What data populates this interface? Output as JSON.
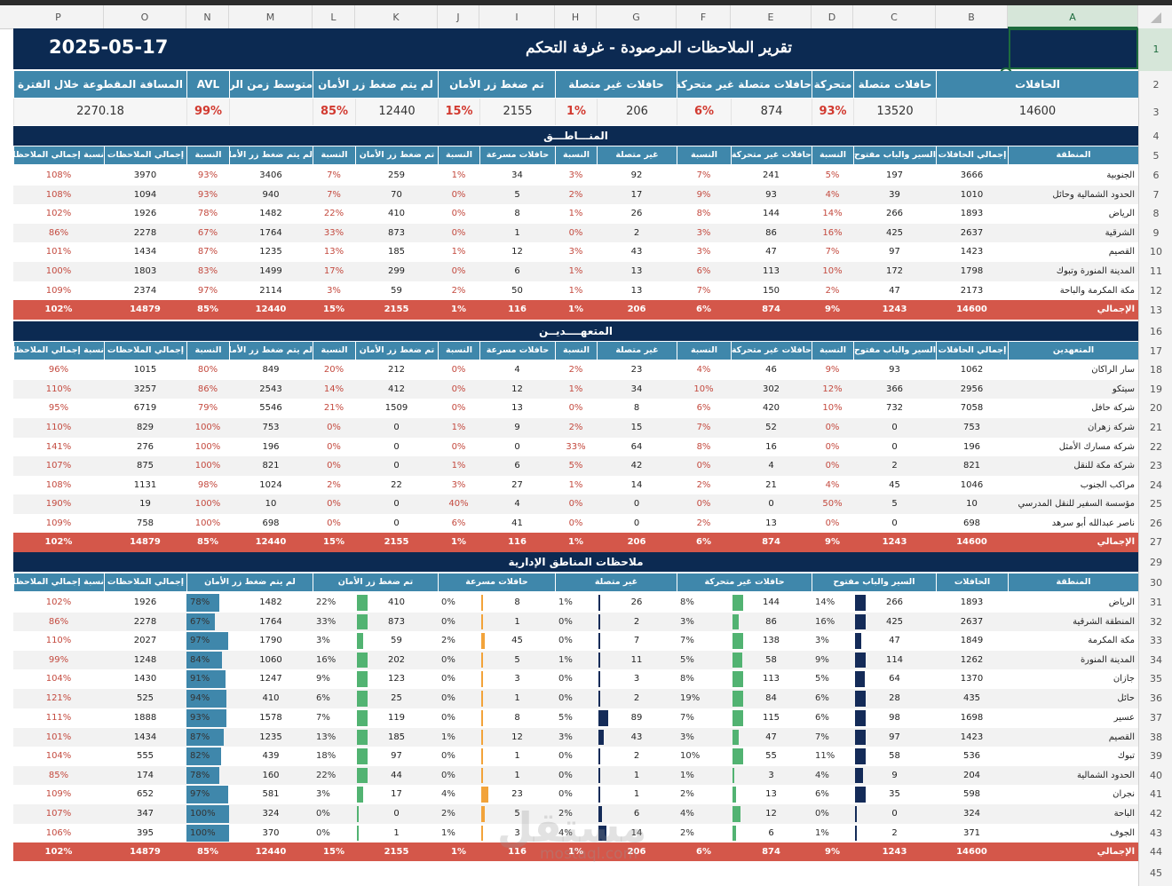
{
  "columns": [
    "P",
    "O",
    "N",
    "M",
    "L",
    "K",
    "J",
    "I",
    "H",
    "G",
    "F",
    "E",
    "D",
    "C",
    "B",
    "A"
  ],
  "rows": [
    1,
    2,
    3,
    4,
    5,
    6,
    7,
    8,
    9,
    10,
    11,
    12,
    13,
    16,
    17,
    18,
    19,
    20,
    21,
    22,
    23,
    24,
    25,
    26,
    27,
    29,
    30,
    31,
    32,
    33,
    34,
    35,
    36,
    37,
    38,
    39,
    40,
    41,
    42,
    43,
    44,
    45
  ],
  "selected_cell": "A1",
  "title": "تقرير الملاحظات المرصودة - غرفة التحكم",
  "date": "2025-05-17",
  "kpi": {
    "headers": [
      "الحافلات",
      "حافلات متصلة",
      "متحركة",
      "حافلات متصلة غير متحركة",
      "حافلات غير متصلة",
      "تم ضغط زر الأمان",
      "لم يتم ضغط زر الأمان",
      "متوسط زمن الرحلة",
      "AVL",
      "المسافة المقطوعة خلال الفترة"
    ],
    "values": [
      "14600",
      "13520",
      "93%",
      "874",
      "6%",
      "206",
      "1%",
      "2155",
      "15%",
      "12440",
      "85%",
      "",
      "99%",
      "2270.18"
    ]
  },
  "sections": {
    "regions": "المنـــاطـــق",
    "contractors": "المتعهــــديــن",
    "admin": "ملاحظات المناطق الإدارية"
  },
  "headers_main": {
    "regions_first": "المنطقة",
    "contractors_first": "المتعهدين",
    "cols": [
      "إجمالي الحافلات",
      "السير والباب مفتوح",
      "النسبة",
      "حافلات غير متحركة",
      "النسبة",
      "غير متصلة",
      "النسبة",
      "حافلات مسرعة",
      "النسبة",
      "تم ضغط زر الأمان",
      "النسبة",
      "لم يتم ضغط زر الأمان",
      "النسبة",
      "إجمالي الملاحظات",
      "نسبة إجمالي الملاحظات"
    ]
  },
  "headers_admin": [
    "المنطقة",
    "الحافلات",
    "السير والباب مفتوح",
    "حافلات غير متحركة",
    "غير متصلة",
    "حافلات مسرعة",
    "تم ضغط زر الأمان",
    "لم يتم ضغط زر الأمان",
    "إجمالي الملاحظات",
    "نسبة إجمالي الملاحظات"
  ],
  "regions": [
    [
      "الجنوبية",
      "3666",
      "197",
      "5%",
      "241",
      "7%",
      "92",
      "3%",
      "34",
      "1%",
      "259",
      "7%",
      "3406",
      "93%",
      "3970",
      "108%"
    ],
    [
      "الحدود الشمالية وحائل",
      "1010",
      "39",
      "4%",
      "93",
      "9%",
      "17",
      "2%",
      "5",
      "0%",
      "70",
      "7%",
      "940",
      "93%",
      "1094",
      "108%"
    ],
    [
      "الرياض",
      "1893",
      "266",
      "14%",
      "144",
      "8%",
      "26",
      "1%",
      "8",
      "0%",
      "410",
      "22%",
      "1482",
      "78%",
      "1926",
      "102%"
    ],
    [
      "الشرقية",
      "2637",
      "425",
      "16%",
      "86",
      "3%",
      "2",
      "0%",
      "1",
      "0%",
      "873",
      "33%",
      "1764",
      "67%",
      "2278",
      "86%"
    ],
    [
      "القصيم",
      "1423",
      "97",
      "7%",
      "47",
      "3%",
      "43",
      "3%",
      "12",
      "1%",
      "185",
      "13%",
      "1235",
      "87%",
      "1434",
      "101%"
    ],
    [
      "المدينة المنورة وتبوك",
      "1798",
      "172",
      "10%",
      "113",
      "6%",
      "13",
      "1%",
      "6",
      "0%",
      "299",
      "17%",
      "1499",
      "83%",
      "1803",
      "100%"
    ],
    [
      "مكة المكرمة والباحة",
      "2173",
      "47",
      "2%",
      "150",
      "7%",
      "13",
      "1%",
      "50",
      "2%",
      "59",
      "3%",
      "2114",
      "97%",
      "2374",
      "109%"
    ]
  ],
  "regions_total": [
    "الإجمالي",
    "14600",
    "1243",
    "9%",
    "874",
    "6%",
    "206",
    "1%",
    "116",
    "1%",
    "2155",
    "15%",
    "12440",
    "85%",
    "14879",
    "102%"
  ],
  "contractors": [
    [
      "سار الراكان",
      "1062",
      "93",
      "9%",
      "46",
      "4%",
      "23",
      "2%",
      "4",
      "0%",
      "212",
      "20%",
      "849",
      "80%",
      "1015",
      "96%"
    ],
    [
      "سيتكو",
      "2956",
      "366",
      "12%",
      "302",
      "10%",
      "34",
      "1%",
      "12",
      "0%",
      "412",
      "14%",
      "2543",
      "86%",
      "3257",
      "110%"
    ],
    [
      "شركة حافل",
      "7058",
      "732",
      "10%",
      "420",
      "6%",
      "8",
      "0%",
      "13",
      "0%",
      "1509",
      "21%",
      "5546",
      "79%",
      "6719",
      "95%"
    ],
    [
      "شركة زهران",
      "753",
      "0",
      "0%",
      "52",
      "7%",
      "15",
      "2%",
      "9",
      "1%",
      "0",
      "0%",
      "753",
      "100%",
      "829",
      "110%"
    ],
    [
      "شركة مسارك الأمثل",
      "196",
      "0",
      "0%",
      "16",
      "8%",
      "64",
      "33%",
      "0",
      "0%",
      "0",
      "0%",
      "196",
      "100%",
      "276",
      "141%"
    ],
    [
      "شركة مكة للنقل",
      "821",
      "2",
      "0%",
      "4",
      "0%",
      "42",
      "5%",
      "6",
      "1%",
      "0",
      "0%",
      "821",
      "100%",
      "875",
      "107%"
    ],
    [
      "مراكب الجنوب",
      "1046",
      "45",
      "4%",
      "21",
      "2%",
      "14",
      "1%",
      "27",
      "3%",
      "22",
      "2%",
      "1024",
      "98%",
      "1131",
      "108%"
    ],
    [
      "مؤسسة السفير للنقل المدرسي",
      "10",
      "5",
      "50%",
      "0",
      "0%",
      "0",
      "0%",
      "4",
      "40%",
      "0",
      "0%",
      "10",
      "100%",
      "19",
      "190%"
    ],
    [
      "ناصر عبدالله أبو سرهد",
      "698",
      "0",
      "0%",
      "13",
      "2%",
      "0",
      "0%",
      "41",
      "6%",
      "0",
      "0%",
      "698",
      "100%",
      "758",
      "109%"
    ]
  ],
  "contractors_total": [
    "الإجمالي",
    "14600",
    "1243",
    "9%",
    "874",
    "6%",
    "206",
    "1%",
    "116",
    "1%",
    "2155",
    "15%",
    "12440",
    "85%",
    "14879",
    "102%"
  ],
  "admin": [
    [
      "الرياض",
      "1893",
      "266",
      "14%",
      "144",
      "8%",
      "26",
      "1%",
      "8",
      "0%",
      "410",
      "22%",
      "1482",
      "78%",
      "1926",
      "102%"
    ],
    [
      "المنطقة الشرقية",
      "2637",
      "425",
      "16%",
      "86",
      "3%",
      "2",
      "0%",
      "1",
      "0%",
      "873",
      "33%",
      "1764",
      "67%",
      "2278",
      "86%"
    ],
    [
      "مكة المكرمة",
      "1849",
      "47",
      "3%",
      "138",
      "7%",
      "7",
      "0%",
      "45",
      "2%",
      "59",
      "3%",
      "1790",
      "97%",
      "2027",
      "110%"
    ],
    [
      "المدينة المنورة",
      "1262",
      "114",
      "9%",
      "58",
      "5%",
      "11",
      "1%",
      "5",
      "0%",
      "202",
      "16%",
      "1060",
      "84%",
      "1248",
      "99%"
    ],
    [
      "جازان",
      "1370",
      "64",
      "5%",
      "113",
      "8%",
      "3",
      "0%",
      "3",
      "0%",
      "123",
      "9%",
      "1247",
      "91%",
      "1430",
      "104%"
    ],
    [
      "حائل",
      "435",
      "28",
      "6%",
      "84",
      "19%",
      "2",
      "0%",
      "1",
      "0%",
      "25",
      "6%",
      "410",
      "94%",
      "525",
      "121%"
    ],
    [
      "عسير",
      "1698",
      "98",
      "6%",
      "115",
      "7%",
      "89",
      "5%",
      "8",
      "0%",
      "119",
      "7%",
      "1578",
      "93%",
      "1888",
      "111%"
    ],
    [
      "القصيم",
      "1423",
      "97",
      "7%",
      "47",
      "3%",
      "43",
      "3%",
      "12",
      "1%",
      "185",
      "13%",
      "1235",
      "87%",
      "1434",
      "101%"
    ],
    [
      "تبوك",
      "536",
      "58",
      "11%",
      "55",
      "10%",
      "2",
      "0%",
      "1",
      "0%",
      "97",
      "18%",
      "439",
      "82%",
      "555",
      "104%"
    ],
    [
      "الحدود الشمالية",
      "204",
      "9",
      "4%",
      "3",
      "1%",
      "1",
      "0%",
      "1",
      "0%",
      "44",
      "22%",
      "160",
      "78%",
      "174",
      "85%"
    ],
    [
      "نجران",
      "598",
      "35",
      "6%",
      "13",
      "2%",
      "1",
      "0%",
      "23",
      "4%",
      "17",
      "3%",
      "581",
      "97%",
      "652",
      "109%"
    ],
    [
      "الباحة",
      "324",
      "0",
      "0%",
      "12",
      "4%",
      "6",
      "2%",
      "5",
      "2%",
      "0",
      "0%",
      "324",
      "100%",
      "347",
      "107%"
    ],
    [
      "الجوف",
      "371",
      "2",
      "1%",
      "6",
      "2%",
      "14",
      "4%",
      "3",
      "1%",
      "1",
      "0%",
      "370",
      "100%",
      "395",
      "106%"
    ]
  ],
  "admin_total": [
    "الإجمالي",
    "14600",
    "1243",
    "9%",
    "874",
    "6%",
    "206",
    "1%",
    "116",
    "1%",
    "2155",
    "15%",
    "12440",
    "85%",
    "14879",
    "102%"
  ],
  "watermark": "مستقل",
  "watermark_url": "mostaql.com",
  "bar_colors": {
    "door": "#142b58",
    "nonmoving": "#52b372",
    "notconnected": "#142b58",
    "speeding": "#f2a33a",
    "pressed": "#52b372",
    "notpressed": "#3f87ab"
  }
}
